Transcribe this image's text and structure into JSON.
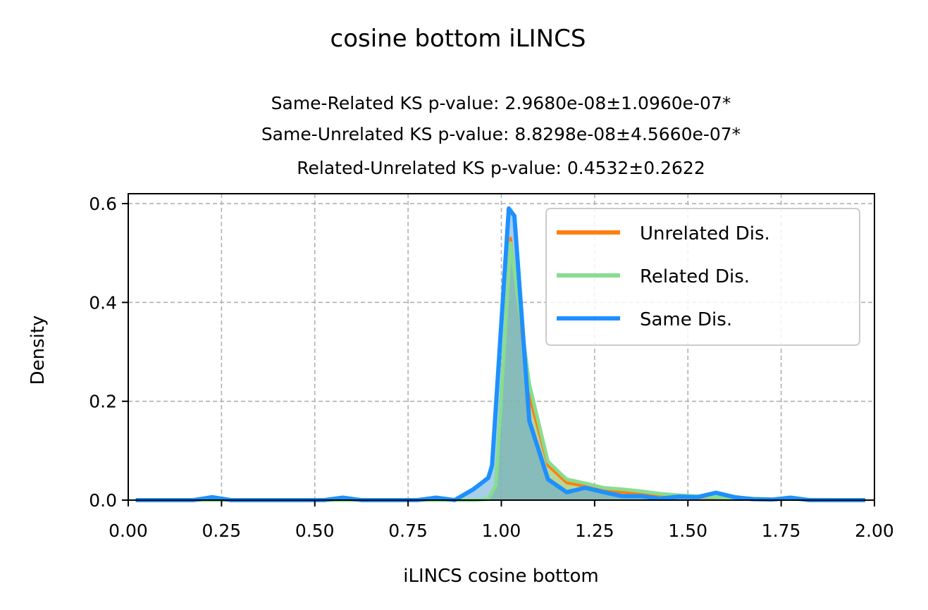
{
  "chart_data": {
    "type": "line",
    "title": "cosine bottom iLINCS",
    "subtitle_lines": [
      "Same-Related KS p-value: 2.9680e-08±1.0960e-07*",
      "Same-Unrelated KS p-value: 8.8298e-08±4.5660e-07*",
      "Related-Unrelated KS p-value: 0.4532±0.2622"
    ],
    "xlabel": "iLINCS cosine bottom",
    "ylabel": "Density",
    "xlim": [
      0,
      2
    ],
    "ylim": [
      0,
      0.62
    ],
    "x_ticks": [
      "0.00",
      "0.25",
      "0.50",
      "0.75",
      "1.00",
      "1.25",
      "1.50",
      "1.75",
      "2.00"
    ],
    "y_ticks": [
      "0.0",
      "0.2",
      "0.4",
      "0.6"
    ],
    "grid": true,
    "legend_position": "upper-right",
    "series": [
      {
        "name": "Unrelated Dis.",
        "color": "#ff7f0e",
        "fill": "#e8a54a",
        "x": [
          0.02,
          0.93,
          0.965,
          0.985,
          1.025,
          1.075,
          1.125,
          1.175,
          1.225,
          1.275,
          1.325,
          1.375,
          1.425,
          1.475,
          1.525,
          1.575,
          1.625,
          1.675,
          1.725,
          1.775,
          1.825,
          1.975
        ],
        "y": [
          0.0,
          0.0,
          0.002,
          0.03,
          0.53,
          0.21,
          0.07,
          0.035,
          0.028,
          0.02,
          0.016,
          0.012,
          0.009,
          0.007,
          0.006,
          0.005,
          0.004,
          0.003,
          0.002,
          0.002,
          0.001,
          0.0
        ]
      },
      {
        "name": "Related Dis.",
        "color": "#88dd90",
        "fill": "#88dd90",
        "x": [
          0.02,
          0.93,
          0.965,
          0.985,
          1.025,
          1.075,
          1.125,
          1.175,
          1.225,
          1.275,
          1.325,
          1.375,
          1.425,
          1.475,
          1.525,
          1.575,
          1.625,
          1.675,
          1.725,
          1.775,
          1.825,
          1.975
        ],
        "y": [
          0.0,
          0.0,
          0.002,
          0.03,
          0.52,
          0.235,
          0.078,
          0.042,
          0.034,
          0.025,
          0.022,
          0.018,
          0.013,
          0.01,
          0.008,
          0.006,
          0.004,
          0.003,
          0.002,
          0.002,
          0.001,
          0.0
        ]
      },
      {
        "name": "Same Dis.",
        "color": "#1e90ff",
        "fill": "#5fa8d8",
        "x": [
          0.02,
          0.175,
          0.225,
          0.275,
          0.525,
          0.575,
          0.625,
          0.775,
          0.825,
          0.875,
          0.925,
          0.965,
          0.975,
          1.02,
          1.035,
          1.075,
          1.125,
          1.175,
          1.225,
          1.275,
          1.325,
          1.375,
          1.425,
          1.475,
          1.525,
          1.575,
          1.625,
          1.675,
          1.725,
          1.775,
          1.825,
          1.975
        ],
        "y": [
          0.0,
          0.0,
          0.006,
          0.0,
          0.0,
          0.005,
          0.0,
          0.0,
          0.005,
          0.0,
          0.022,
          0.045,
          0.07,
          0.59,
          0.575,
          0.16,
          0.042,
          0.016,
          0.025,
          0.016,
          0.008,
          0.008,
          0.003,
          0.007,
          0.006,
          0.015,
          0.006,
          0.002,
          0.001,
          0.005,
          0.0,
          0.0
        ]
      }
    ]
  }
}
